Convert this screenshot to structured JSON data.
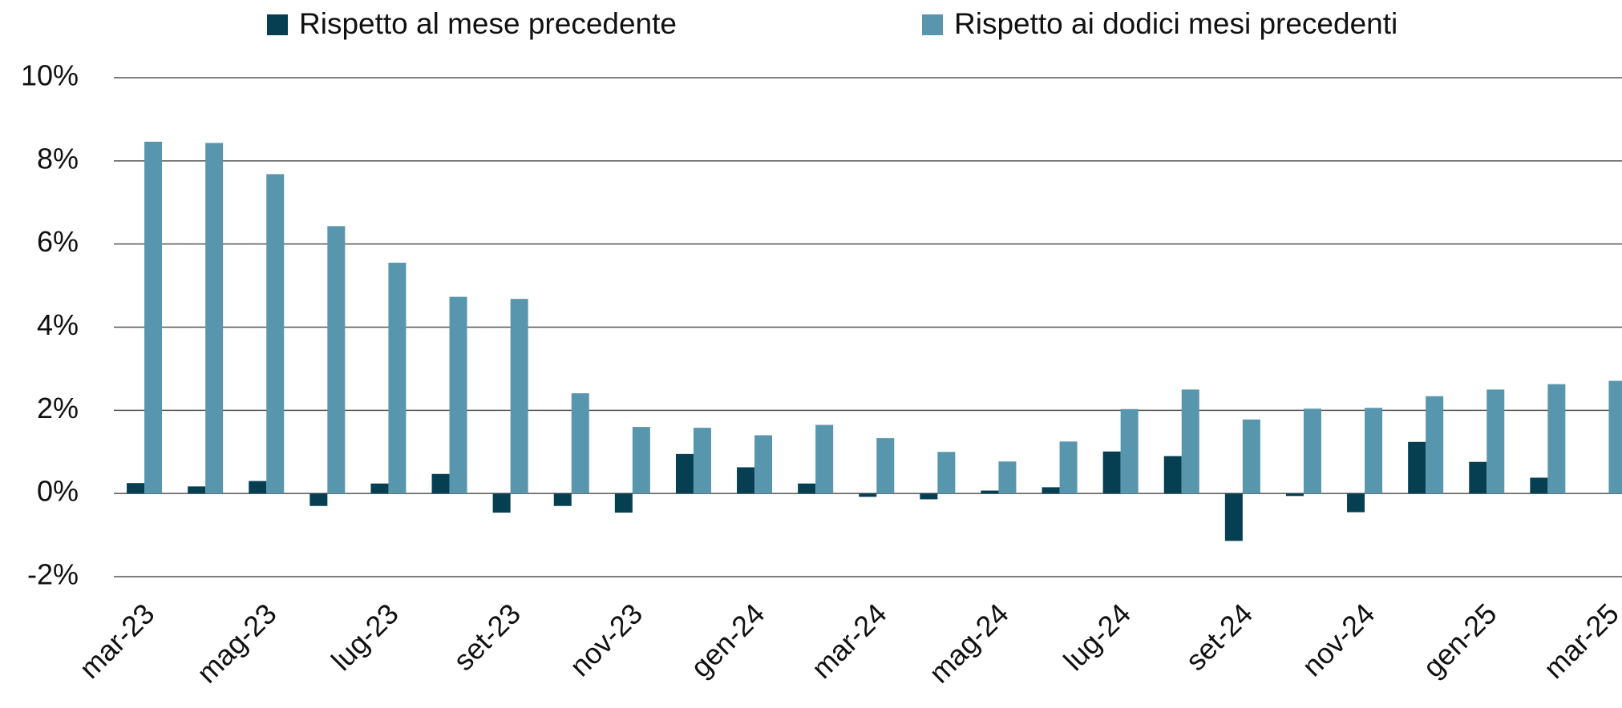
{
  "chart_data": {
    "type": "bar",
    "categories": [
      "mar-23",
      null,
      "mag-23",
      null,
      "lug-23",
      null,
      "set-23",
      null,
      "nov-23",
      null,
      "gen-24",
      null,
      "mar-24",
      null,
      "mag-24",
      null,
      "lug-24",
      null,
      "set-24",
      null,
      "nov-24",
      null,
      "gen-25",
      null,
      "mar-25"
    ],
    "series": [
      {
        "name": "Rispetto al mese precedente",
        "color": "#073f52",
        "values": [
          0.25,
          0.17,
          0.3,
          -0.3,
          0.24,
          0.47,
          -0.46,
          -0.3,
          -0.46,
          0.95,
          0.63,
          0.24,
          -0.08,
          -0.14,
          0.07,
          0.15,
          1.01,
          0.9,
          -1.14,
          -0.06,
          -0.45,
          1.24,
          0.76,
          0.38,
          0.0
        ]
      },
      {
        "name": "Rispetto ai dodici mesi precedenti",
        "color": "#5896ae",
        "values": [
          8.46,
          8.43,
          7.68,
          6.43,
          5.55,
          4.73,
          4.68,
          2.41,
          1.6,
          1.58,
          1.4,
          1.65,
          1.33,
          1.0,
          0.77,
          1.25,
          2.03,
          2.5,
          1.78,
          2.04,
          2.06,
          2.34,
          2.5,
          2.63,
          2.71
        ]
      }
    ],
    "ylim": [
      -2,
      10
    ],
    "yticks": [
      {
        "value": -2,
        "label": "-2%"
      },
      {
        "value": 0,
        "label": "0%"
      },
      {
        "value": 2,
        "label": "2%"
      },
      {
        "value": 4,
        "label": "4%"
      },
      {
        "value": 6,
        "label": "6%"
      },
      {
        "value": 8,
        "label": "8%"
      },
      {
        "value": 10,
        "label": "10%"
      }
    ],
    "grid": true,
    "legend": "top"
  }
}
